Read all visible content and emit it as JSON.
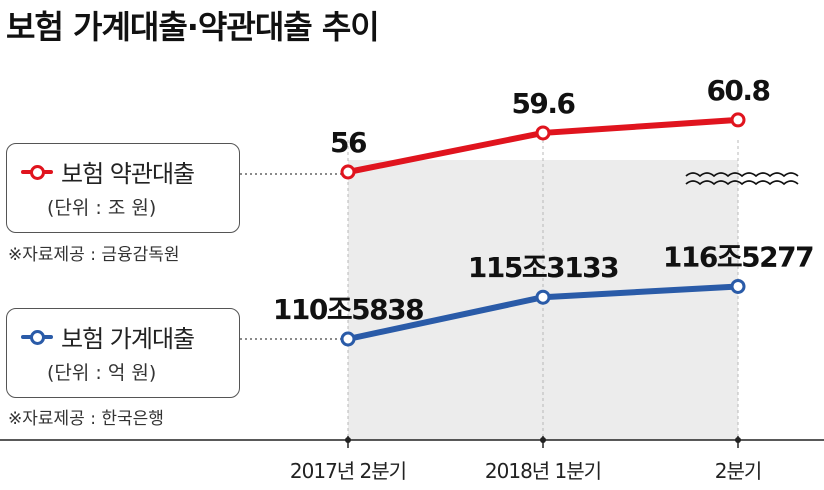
{
  "title": "보험 가계대출·약관대출 추이",
  "colors": {
    "red": "#e0141e",
    "blue": "#2a5ba8",
    "band": "#ececec",
    "axis": "#222222"
  },
  "legends": [
    {
      "name": "보험 약관대출",
      "unit": "(단위 : 조 원)",
      "source": "※자료제공 : 금융감독원"
    },
    {
      "name": "보험 가계대출",
      "unit": "(단위 : 억 원)",
      "source": "※자료제공 : 한국은행"
    }
  ],
  "chart_data": {
    "type": "line",
    "categories": [
      "2017년 2분기",
      "2018년 1분기",
      "2분기"
    ],
    "series": [
      {
        "name": "보험 약관대출",
        "unit": "조 원",
        "values": [
          56,
          59.6,
          60.8
        ],
        "labels": [
          "56",
          "59.6",
          "60.8"
        ],
        "color": "#e0141e"
      },
      {
        "name": "보험 가계대출",
        "unit": "억 원",
        "values": [
          1105838,
          1153133,
          1165277
        ],
        "labels": [
          "110조5838",
          "115조3133",
          "116조5277"
        ],
        "color": "#2a5ba8"
      }
    ],
    "axis_break": "after-first-series",
    "grid": false,
    "legend": "left"
  }
}
